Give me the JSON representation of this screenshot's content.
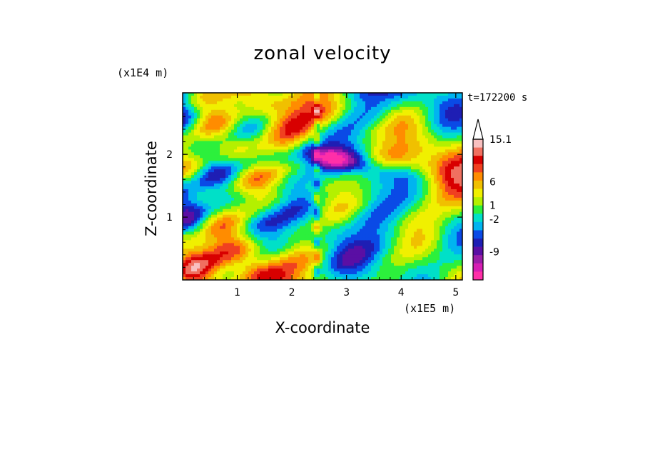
{
  "chart_data": {
    "type": "heatmap",
    "title": "zonal velocity",
    "xlabel": "X-coordinate",
    "ylabel": "Z-coordinate",
    "x_unit": "(x1E5 m)",
    "y_unit": "(x1E4 m)",
    "time_label": "t=172200 s",
    "xlim": [
      0,
      5.12
    ],
    "ylim": [
      0,
      2.98
    ],
    "x_ticks": [
      "1",
      "2",
      "3",
      "4",
      "5"
    ],
    "y_ticks": [
      "1",
      "2"
    ],
    "x_tick_values": [
      1,
      2,
      3,
      4,
      5
    ],
    "y_tick_values": [
      1,
      2
    ],
    "colorbar": {
      "levels": [
        -15,
        -12,
        -9,
        -6,
        -3,
        -2,
        -1,
        0,
        1,
        2,
        3,
        6,
        9,
        12,
        15.1
      ],
      "labels": [
        "15.1",
        "6",
        "1",
        "-2",
        "-9"
      ],
      "label_values": [
        15.1,
        6,
        1,
        -2,
        -9
      ],
      "colors": [
        "#ff2fa8",
        "#d61fb4",
        "#9b1ea8",
        "#5a0fa4",
        "#1e1eb4",
        "#0a4ae6",
        "#00b4f0",
        "#00e0c8",
        "#2cf03c",
        "#b4f000",
        "#f0f000",
        "#f0c000",
        "#ff8c00",
        "#f04020",
        "#d80000",
        "#f07060",
        "#f8c0c0"
      ]
    },
    "grid": false
  }
}
